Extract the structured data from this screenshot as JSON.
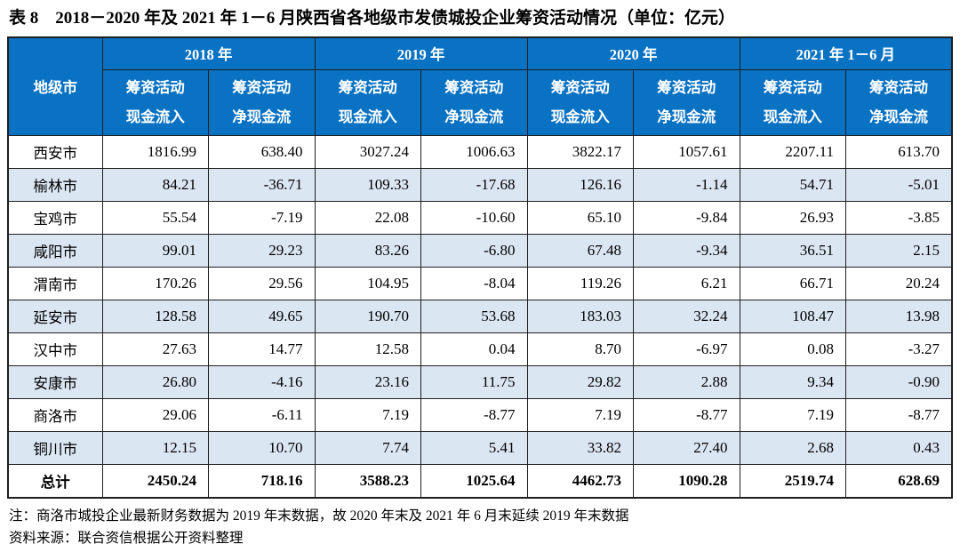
{
  "title": "表 8　2018－2020 年及 2021 年 1－6 月陕西省各地级市发债城投企业筹资活动情况（单位：亿元）",
  "colors": {
    "header_bg": "#0a72c3",
    "stripe_bg": "#dbe6f3",
    "border": "#1f1f1f"
  },
  "table": {
    "city_header": "地级市",
    "groups": [
      {
        "label": "2018 年"
      },
      {
        "label": "2019 年"
      },
      {
        "label": "2020 年"
      },
      {
        "label": "2021 年 1－6 月"
      }
    ],
    "measures": {
      "inflow": [
        "筹资活动",
        "现金流入"
      ],
      "net": [
        "筹资活动",
        "净现金流"
      ]
    },
    "rows": [
      {
        "city": "西安市",
        "values": [
          "1816.99",
          "638.40",
          "3027.24",
          "1006.63",
          "3822.17",
          "1057.61",
          "2207.11",
          "613.70"
        ]
      },
      {
        "city": "榆林市",
        "values": [
          "84.21",
          "-36.71",
          "109.33",
          "-17.68",
          "126.16",
          "-1.14",
          "54.71",
          "-5.01"
        ]
      },
      {
        "city": "宝鸡市",
        "values": [
          "55.54",
          "-7.19",
          "22.08",
          "-10.60",
          "65.10",
          "-9.84",
          "26.93",
          "-3.85"
        ]
      },
      {
        "city": "咸阳市",
        "values": [
          "99.01",
          "29.23",
          "83.26",
          "-6.80",
          "67.48",
          "-9.34",
          "36.51",
          "2.15"
        ]
      },
      {
        "city": "渭南市",
        "values": [
          "170.26",
          "29.56",
          "104.95",
          "-8.04",
          "119.26",
          "6.21",
          "66.71",
          "20.24"
        ]
      },
      {
        "city": "延安市",
        "values": [
          "128.58",
          "49.65",
          "190.70",
          "53.68",
          "183.03",
          "32.24",
          "108.47",
          "13.98"
        ]
      },
      {
        "city": "汉中市",
        "values": [
          "27.63",
          "14.77",
          "12.58",
          "0.04",
          "8.70",
          "-6.97",
          "0.08",
          "-3.27"
        ]
      },
      {
        "city": "安康市",
        "values": [
          "26.80",
          "-4.16",
          "23.16",
          "11.75",
          "29.82",
          "2.88",
          "9.34",
          "-0.90"
        ]
      },
      {
        "city": "商洛市",
        "values": [
          "29.06",
          "-6.11",
          "7.19",
          "-8.77",
          "7.19",
          "-8.77",
          "7.19",
          "-8.77"
        ]
      },
      {
        "city": "铜川市",
        "values": [
          "12.15",
          "10.70",
          "7.74",
          "5.41",
          "33.82",
          "27.40",
          "2.68",
          "0.43"
        ]
      }
    ],
    "total": {
      "city": "总计",
      "values": [
        "2450.24",
        "718.16",
        "3588.23",
        "1025.64",
        "4462.73",
        "1090.28",
        "2519.74",
        "628.69"
      ]
    }
  },
  "notes": [
    "注：商洛市城投企业最新财务数据为 2019 年末数据，故 2020 年末及 2021 年 6 月末延续 2019 年末数据",
    "资料来源：联合资信根据公开资料整理"
  ]
}
